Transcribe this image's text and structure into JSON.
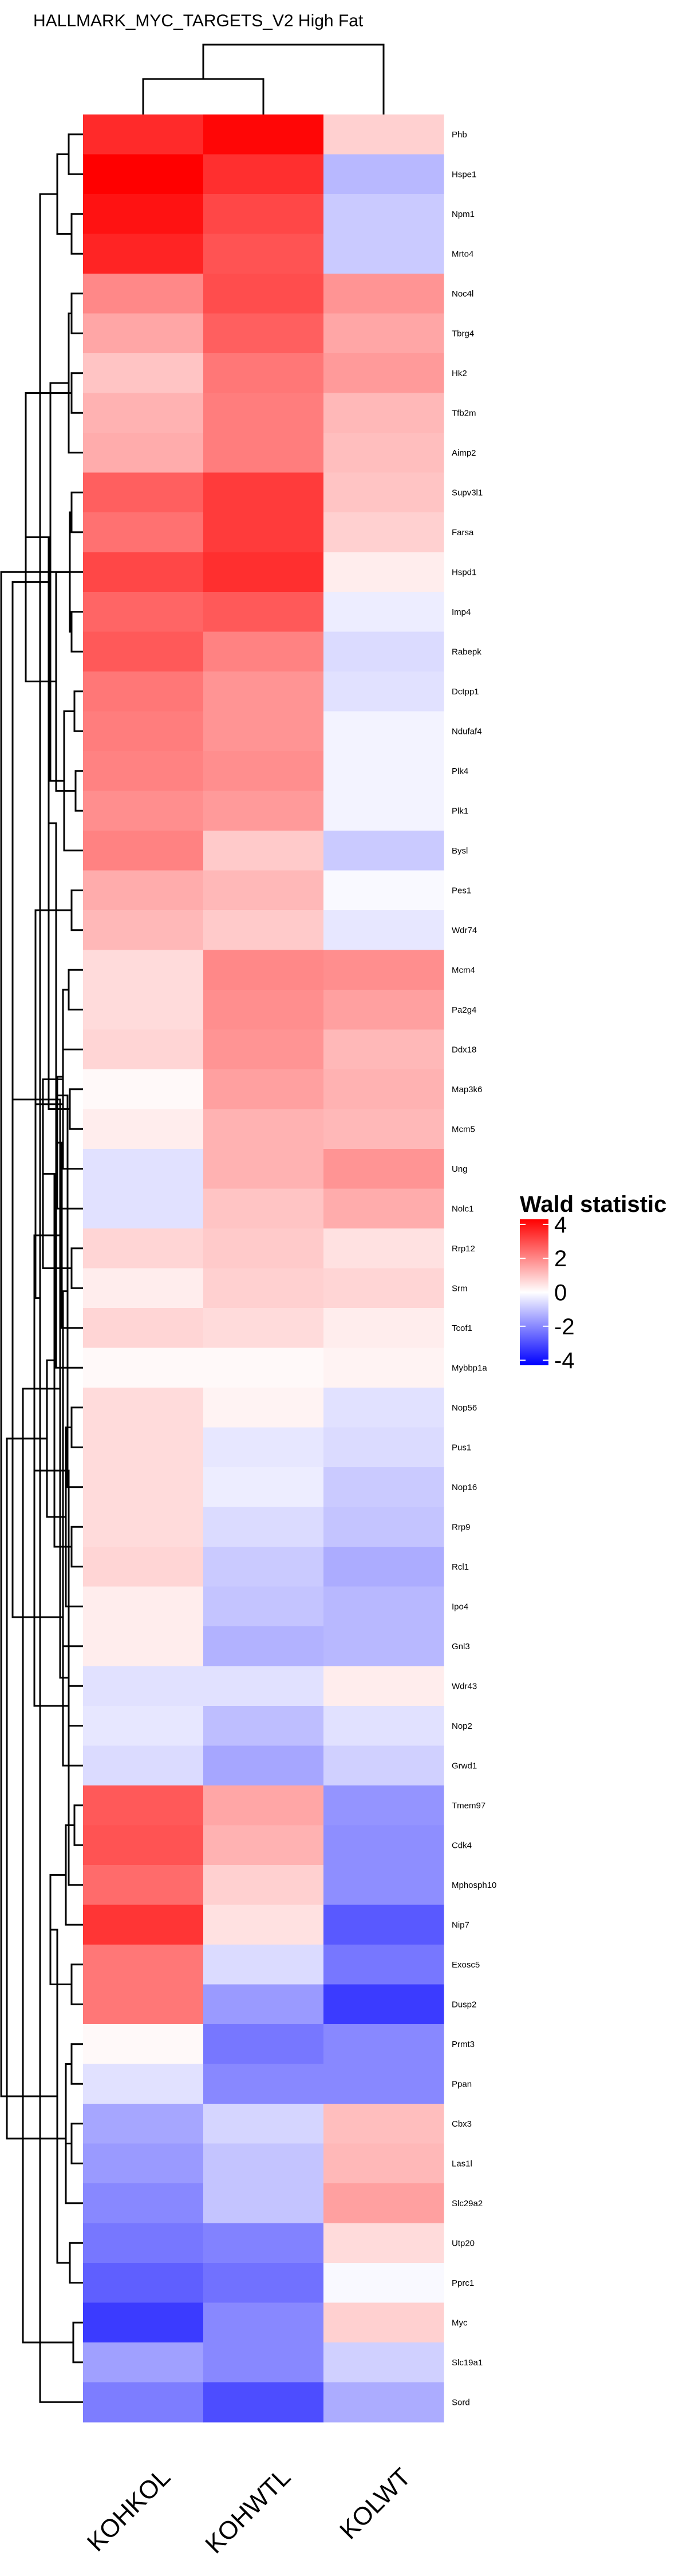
{
  "chart_data": {
    "type": "heatmap",
    "title": "HALLMARK_MYC_TARGETS_V2 High Fat",
    "columns": [
      "KOHKOL",
      "KOHWTL",
      "KOLWT"
    ],
    "rows": [
      "Phb",
      "Hspe1",
      "Npm1",
      "Mrto4",
      "Noc4l",
      "Tbrg4",
      "Hk2",
      "Tfb2m",
      "Aimp2",
      "Supv3l1",
      "Farsa",
      "Hspd1",
      "Imp4",
      "Rabepk",
      "Dctpp1",
      "Ndufaf4",
      "Plk4",
      "Plk1",
      "Bysl",
      "Pes1",
      "Wdr74",
      "Mcm4",
      "Pa2g4",
      "Ddx18",
      "Map3k6",
      "Mcm5",
      "Ung",
      "Nolc1",
      "Rrp12",
      "Srm",
      "Tcof1",
      "Mybbp1a",
      "Nop56",
      "Pus1",
      "Nop16",
      "Rrp9",
      "Rcl1",
      "Ipo4",
      "Gnl3",
      "Wdr43",
      "Nop2",
      "Grwd1",
      "Tmem97",
      "Cdk4",
      "Mphosph10",
      "Nip7",
      "Exosc5",
      "Dusp2",
      "Prmt3",
      "Ppan",
      "Cbx3",
      "Las1l",
      "Slc29a2",
      "Utp20",
      "Pprc1",
      "Myc",
      "Slc19a1",
      "Sord"
    ],
    "values": [
      [
        3.6,
        4.2,
        0.8
      ],
      [
        4.3,
        3.5,
        -1.2
      ],
      [
        4.0,
        3.1,
        -0.9
      ],
      [
        3.7,
        2.9,
        -0.9
      ],
      [
        2.0,
        3.0,
        1.8
      ],
      [
        1.5,
        2.7,
        1.5
      ],
      [
        1.0,
        2.3,
        1.7
      ],
      [
        1.3,
        2.2,
        1.2
      ],
      [
        1.4,
        2.2,
        1.1
      ],
      [
        2.7,
        3.3,
        1.0
      ],
      [
        2.4,
        3.3,
        0.8
      ],
      [
        3.1,
        3.5,
        0.3
      ],
      [
        2.6,
        2.8,
        -0.3
      ],
      [
        2.8,
        2.1,
        -0.6
      ],
      [
        2.3,
        1.8,
        -0.5
      ],
      [
        2.2,
        1.8,
        -0.2
      ],
      [
        2.1,
        1.9,
        -0.2
      ],
      [
        1.9,
        1.7,
        -0.2
      ],
      [
        2.1,
        0.9,
        -0.9
      ],
      [
        1.4,
        1.2,
        -0.1
      ],
      [
        1.2,
        0.9,
        -0.4
      ],
      [
        0.6,
        2.0,
        1.9
      ],
      [
        0.6,
        1.9,
        1.6
      ],
      [
        0.7,
        1.8,
        1.2
      ],
      [
        0.1,
        1.6,
        1.3
      ],
      [
        0.3,
        1.3,
        1.2
      ],
      [
        -0.5,
        1.3,
        1.8
      ],
      [
        -0.5,
        1.0,
        1.4
      ],
      [
        0.7,
        0.9,
        0.5
      ],
      [
        0.3,
        0.8,
        0.7
      ],
      [
        0.7,
        0.6,
        0.3
      ],
      [
        0.1,
        0.1,
        0.2
      ],
      [
        0.6,
        0.2,
        -0.5
      ],
      [
        0.6,
        -0.4,
        -0.6
      ],
      [
        0.6,
        -0.3,
        -0.9
      ],
      [
        0.6,
        -0.6,
        -1.0
      ],
      [
        0.7,
        -0.9,
        -1.4
      ],
      [
        0.3,
        -1.0,
        -1.2
      ],
      [
        0.3,
        -1.3,
        -1.2
      ],
      [
        -0.5,
        -0.5,
        0.3
      ],
      [
        -0.4,
        -1.1,
        -0.5
      ],
      [
        -0.6,
        -1.5,
        -0.8
      ],
      [
        2.8,
        1.5,
        -1.8
      ],
      [
        2.9,
        1.3,
        -1.9
      ],
      [
        2.5,
        0.8,
        -1.9
      ],
      [
        3.4,
        0.5,
        -2.8
      ],
      [
        2.3,
        -0.6,
        -2.3
      ],
      [
        2.3,
        -1.7,
        -3.3
      ],
      [
        0.1,
        -2.3,
        -2.0
      ],
      [
        -0.5,
        -2.0,
        -2.0
      ],
      [
        -1.5,
        -0.7,
        1.1
      ],
      [
        -1.7,
        -1.0,
        1.2
      ],
      [
        -2.0,
        -1.0,
        1.6
      ],
      [
        -2.3,
        -2.1,
        0.6
      ],
      [
        -2.7,
        -2.4,
        -0.1
      ],
      [
        -3.3,
        -2.0,
        0.8
      ],
      [
        -1.6,
        -2.0,
        -0.8
      ],
      [
        -2.2,
        -3.0,
        -1.4
      ]
    ],
    "legend": {
      "title": "Wald statistic",
      "ticks": [
        4,
        2,
        0,
        -2,
        -4
      ],
      "colors": {
        "low": "#0000ff",
        "mid": "#ffffff",
        "high": "#ff0000"
      },
      "range": [
        -4.3,
        4.3
      ]
    }
  }
}
